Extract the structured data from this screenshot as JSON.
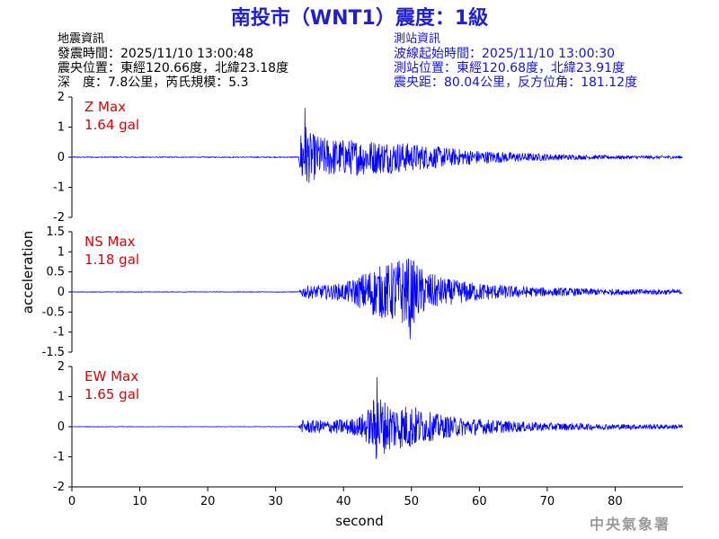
{
  "title": "南投市（WNT1）震度：1級",
  "quake_info": {
    "header": "地震資訊",
    "time": "發震時間：2025/11/10 13:00:48",
    "location": "震央位置：東經120.66度，北緯23.18度",
    "depth_magnitude": "深　度：7.8公里，芮氏規模：5.3"
  },
  "station_info": {
    "header": "測站資訊",
    "wave_start": "波線起始時間：2025/11/10 13:00:30",
    "location": "測站位置：東經120.68度，北緯23.91度",
    "distance": "震央距：80.04公里，反方位角：181.12度"
  },
  "footer": "中央氣象署",
  "colors": {
    "title": "#1f1fcc",
    "trace": "#0000ff",
    "max_label": "#e00000",
    "station": "#1414d0"
  },
  "chart_data": {
    "type": "line",
    "xlabel": "second",
    "ylabel": "acceleration",
    "xlim": [
      0,
      90
    ],
    "x_ticks": [
      0,
      10,
      20,
      30,
      40,
      50,
      60,
      70,
      80
    ],
    "x_tick_labels": [
      "0",
      "10",
      "20",
      "30",
      "40",
      "50",
      "60",
      "70",
      "80"
    ],
    "grid": false,
    "panels": [
      {
        "component": "Z",
        "max_label": "Z Max",
        "max_value_label": "1.64 gal",
        "ylim": [
          -2,
          2
        ],
        "y_ticks": [
          -2,
          -1,
          0,
          1,
          2
        ],
        "y_tick_labels": [
          "-2",
          "-1",
          "0",
          "1",
          "2"
        ],
        "envelope": [
          [
            0,
            0.02
          ],
          [
            33.4,
            0.02
          ],
          [
            33.8,
            1.5
          ],
          [
            34.3,
            1.64
          ],
          [
            35,
            1.1
          ],
          [
            37,
            0.9
          ],
          [
            40,
            0.8
          ],
          [
            43,
            0.8
          ],
          [
            45,
            0.75
          ],
          [
            48,
            0.7
          ],
          [
            52,
            0.55
          ],
          [
            56,
            0.4
          ],
          [
            60,
            0.3
          ],
          [
            65,
            0.22
          ],
          [
            70,
            0.15
          ],
          [
            75,
            0.1
          ],
          [
            80,
            0.08
          ],
          [
            85,
            0.07
          ],
          [
            90,
            0.06
          ]
        ]
      },
      {
        "component": "NS",
        "max_label": "NS Max",
        "max_value_label": "1.18 gal",
        "ylim": [
          -1.5,
          1.5
        ],
        "y_ticks": [
          -1.5,
          -1,
          -0.5,
          0,
          0.5,
          1,
          1.5
        ],
        "y_tick_labels": [
          "-1.5",
          "-1",
          "-0.5",
          "0",
          "0.5",
          "1",
          "1.5"
        ],
        "envelope": [
          [
            0,
            0.01
          ],
          [
            33.4,
            0.01
          ],
          [
            34,
            0.2
          ],
          [
            38,
            0.25
          ],
          [
            40,
            0.3
          ],
          [
            42,
            0.5
          ],
          [
            44,
            0.8
          ],
          [
            46,
            0.9
          ],
          [
            48,
            1.1
          ],
          [
            49.8,
            1.18
          ],
          [
            52,
            0.7
          ],
          [
            55,
            0.45
          ],
          [
            60,
            0.3
          ],
          [
            65,
            0.2
          ],
          [
            70,
            0.15
          ],
          [
            80,
            0.1
          ],
          [
            90,
            0.08
          ]
        ]
      },
      {
        "component": "EW",
        "max_label": "EW Max",
        "max_value_label": "1.65 gal",
        "ylim": [
          -2,
          2
        ],
        "y_ticks": [
          -2,
          -1,
          0,
          1,
          2
        ],
        "y_tick_labels": [
          "-2",
          "-1",
          "0",
          "1",
          "2"
        ],
        "envelope": [
          [
            0,
            0.01
          ],
          [
            33.4,
            0.01
          ],
          [
            34,
            0.3
          ],
          [
            38,
            0.3
          ],
          [
            42,
            0.4
          ],
          [
            44,
            0.9
          ],
          [
            44.9,
            1.65
          ],
          [
            46,
            1.2
          ],
          [
            48,
            1.0
          ],
          [
            50,
            1.0
          ],
          [
            52,
            0.7
          ],
          [
            55,
            0.5
          ],
          [
            60,
            0.35
          ],
          [
            65,
            0.25
          ],
          [
            70,
            0.18
          ],
          [
            80,
            0.12
          ],
          [
            90,
            0.1
          ]
        ]
      }
    ]
  }
}
